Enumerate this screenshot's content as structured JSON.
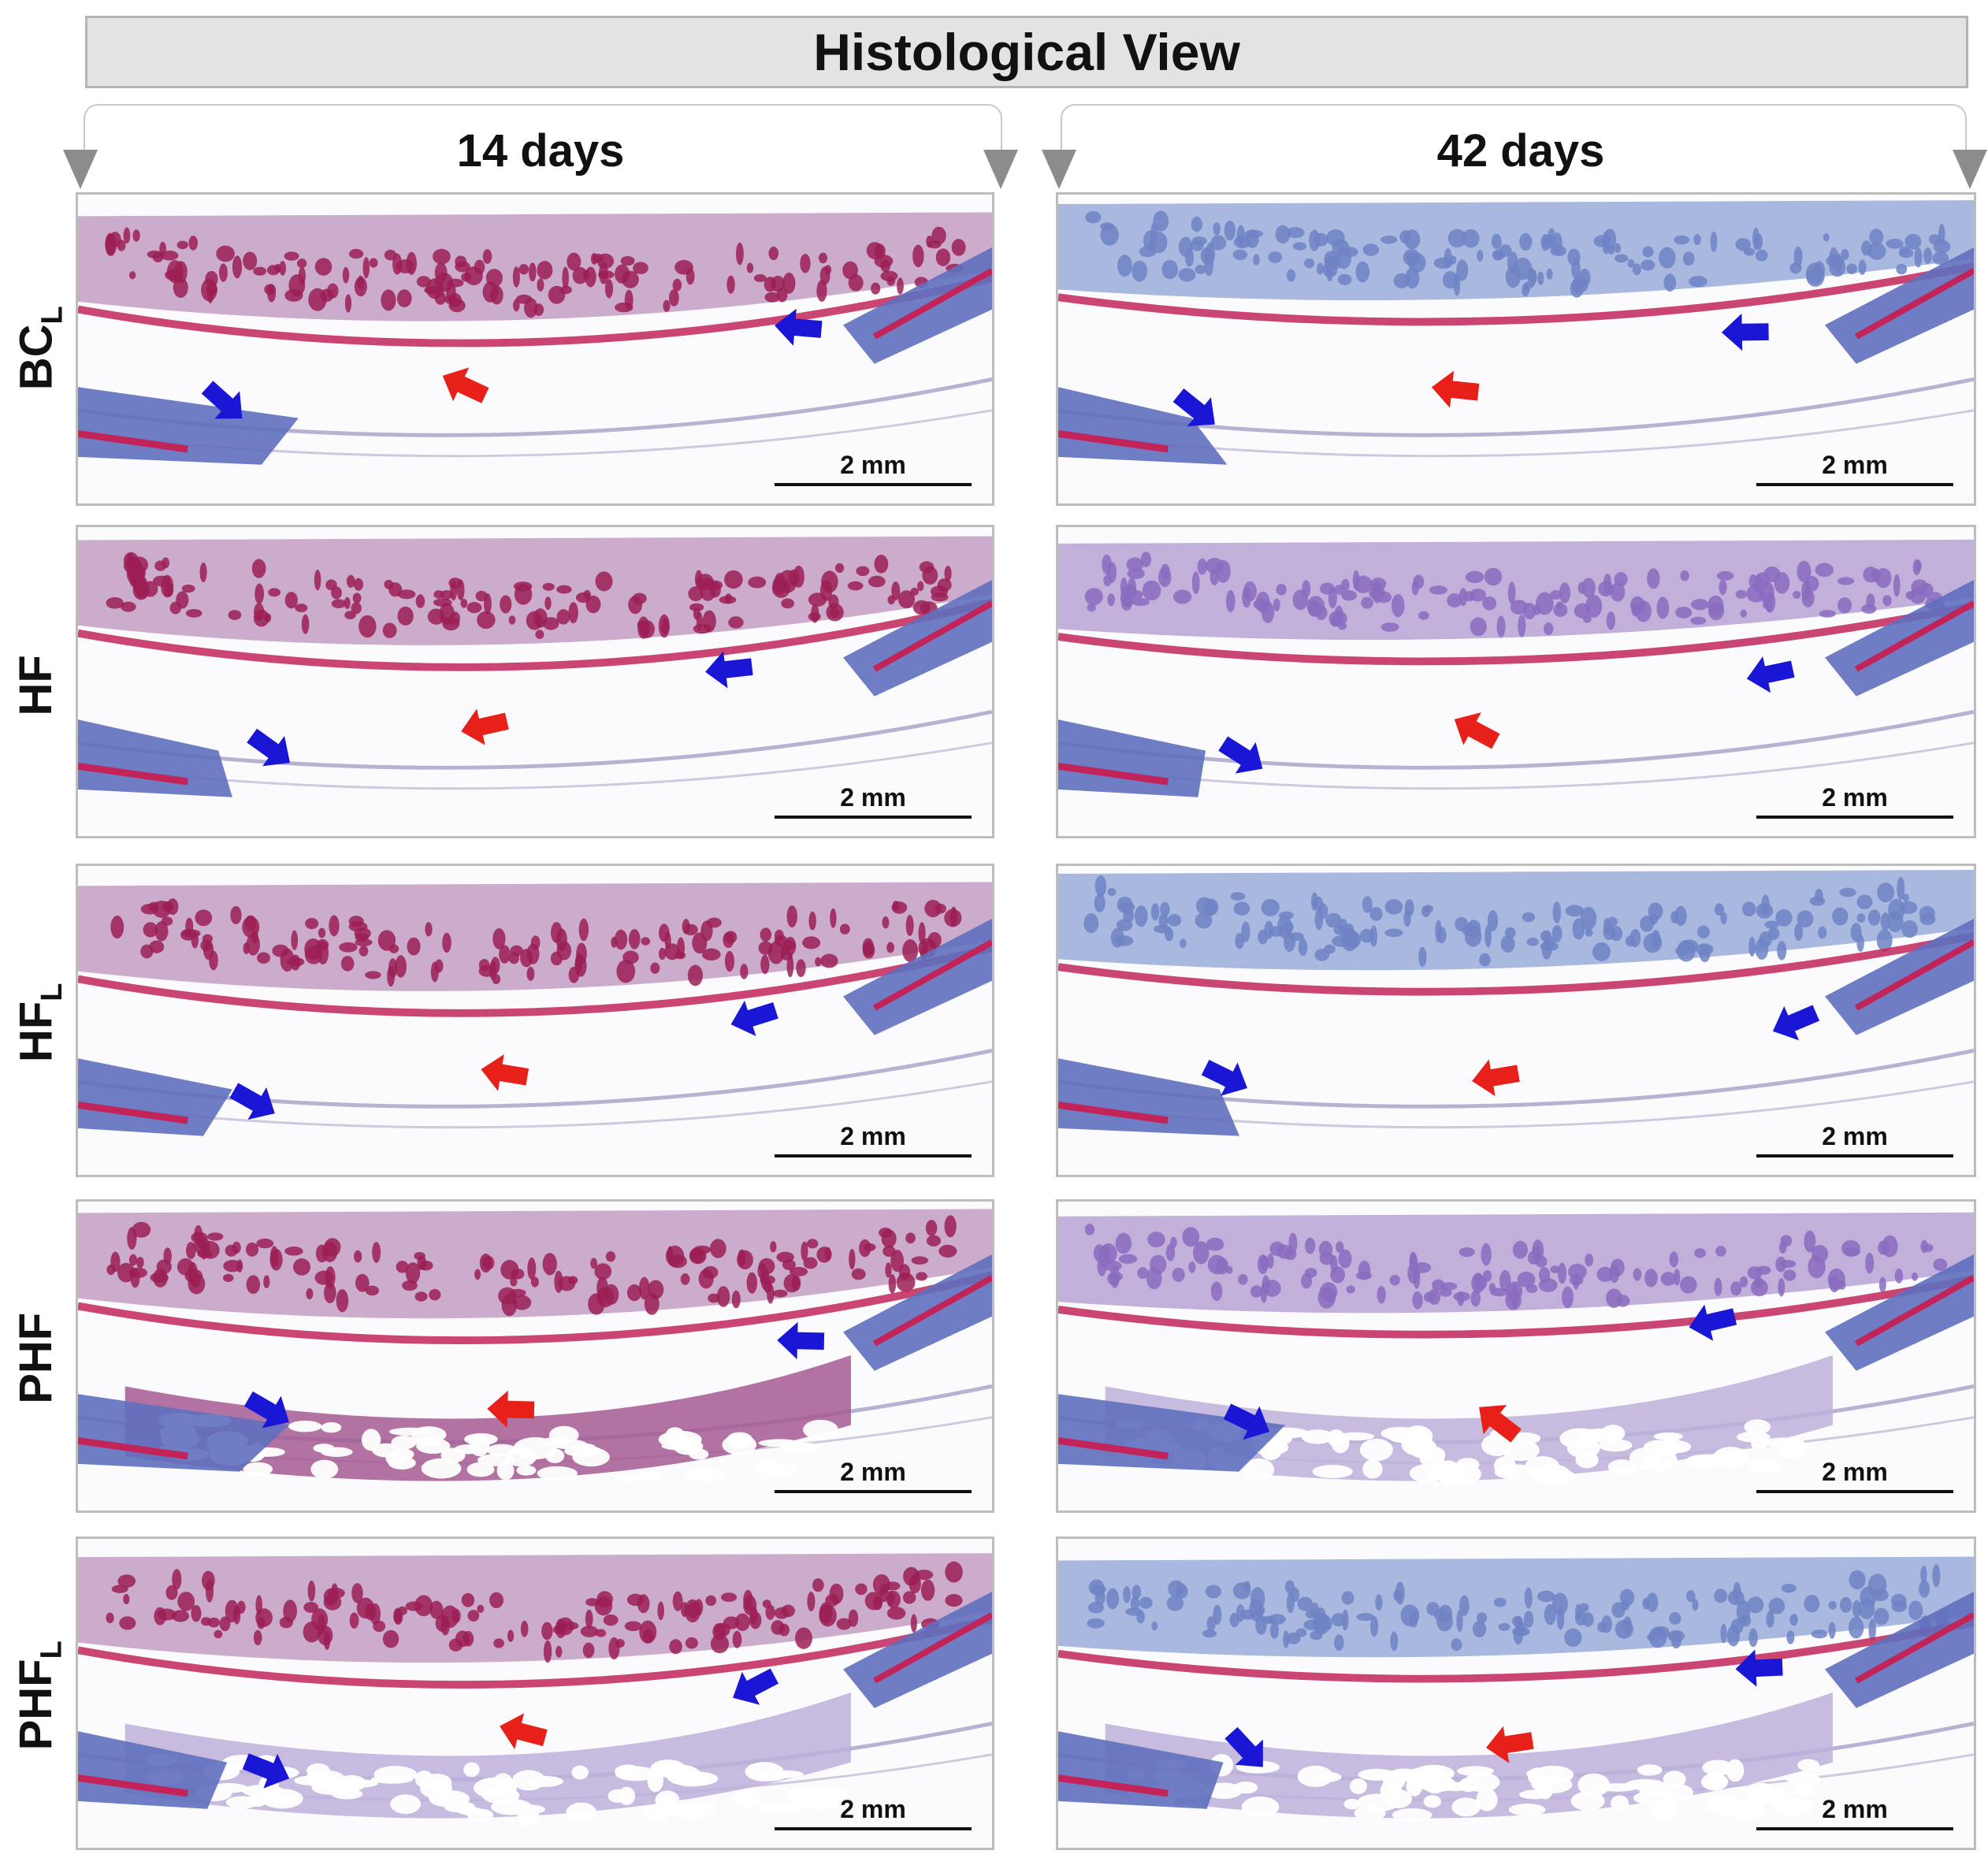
{
  "title": "Histological View",
  "columns": [
    "14 days",
    "42 days"
  ],
  "rows": [
    {
      "label": "BC",
      "subscript": "L"
    },
    {
      "label": "HF",
      "subscript": ""
    },
    {
      "label": "HF",
      "subscript": "L"
    },
    {
      "label": "PHF",
      "subscript": ""
    },
    {
      "label": "PHF",
      "subscript": "L"
    }
  ],
  "scale_bar_label": "2 mm",
  "colors": {
    "arrow_new_tissue": "#e8201a",
    "arrow_defect_margin": "#1a16d6",
    "collagen_blue": "#6f82c4",
    "muscle_red": "#c2245a"
  },
  "panels": [
    {
      "col": 0,
      "row": 0,
      "stain_tone": "red-dominant"
    },
    {
      "col": 1,
      "row": 0,
      "stain_tone": "blue-dominant"
    },
    {
      "col": 0,
      "row": 1,
      "stain_tone": "red-dominant"
    },
    {
      "col": 1,
      "row": 1,
      "stain_tone": "purple"
    },
    {
      "col": 0,
      "row": 2,
      "stain_tone": "red-dominant"
    },
    {
      "col": 1,
      "row": 2,
      "stain_tone": "blue-dominant"
    },
    {
      "col": 0,
      "row": 3,
      "stain_tone": "red-dominant",
      "scaffold": true
    },
    {
      "col": 1,
      "row": 3,
      "stain_tone": "purple",
      "scaffold": true
    },
    {
      "col": 0,
      "row": 4,
      "stain_tone": "red-dominant",
      "scaffold": true
    },
    {
      "col": 1,
      "row": 4,
      "stain_tone": "blue-dominant",
      "scaffold": true
    }
  ]
}
